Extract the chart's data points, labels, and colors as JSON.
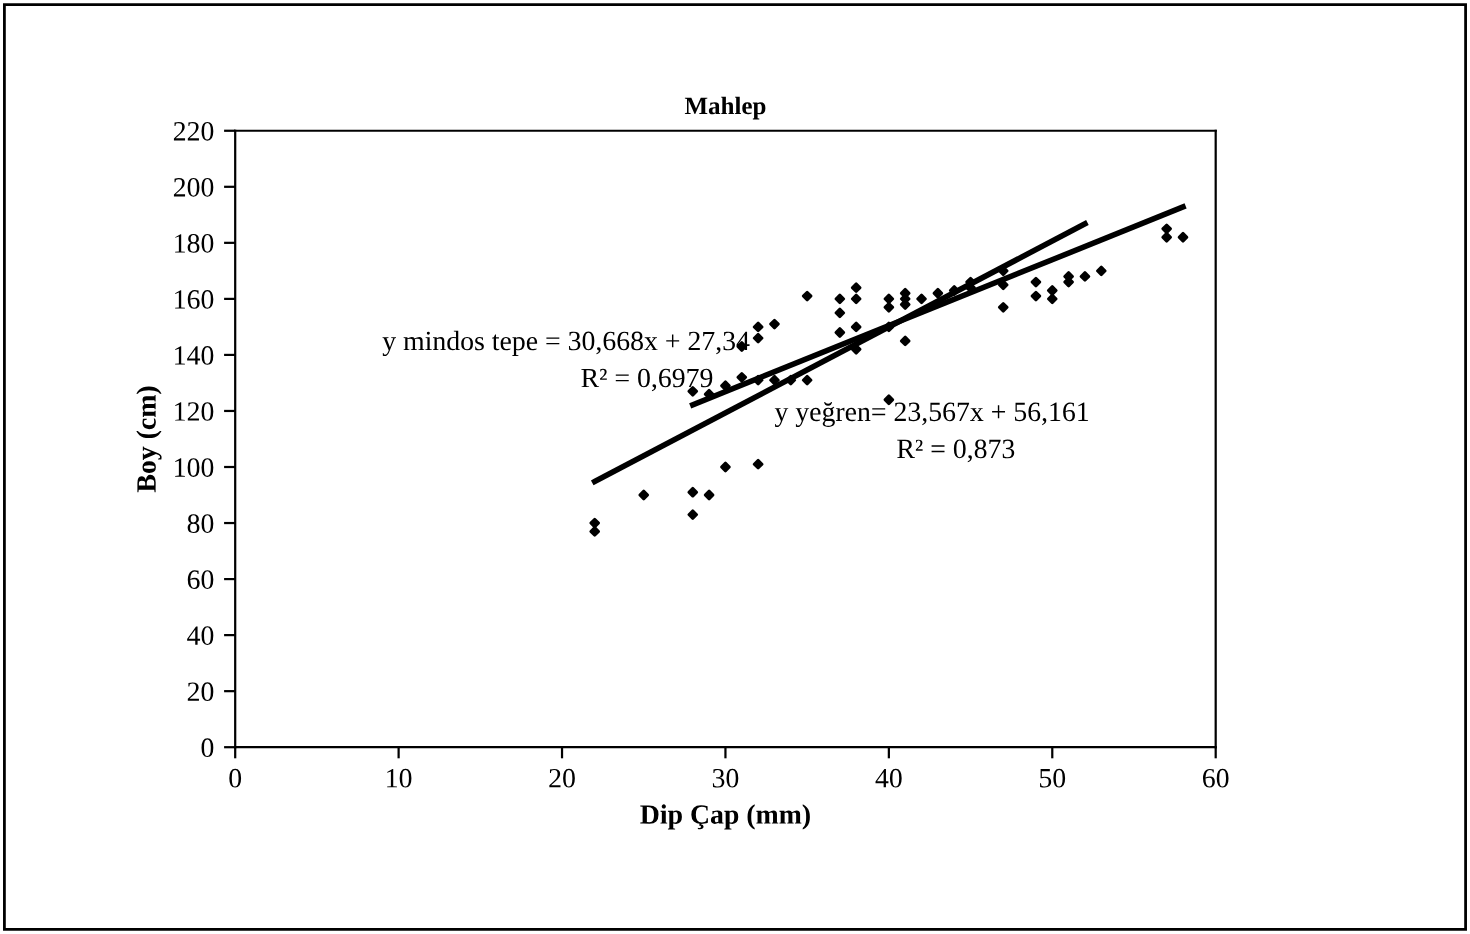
{
  "chart_data": {
    "type": "scatter",
    "title": "Mahlep",
    "xlabel": "Dip Çap (mm)",
    "ylabel": "Boy (cm)",
    "xlim": [
      0,
      60
    ],
    "xticks": [
      0,
      10,
      20,
      30,
      40,
      50,
      60
    ],
    "ylim": [
      0,
      220
    ],
    "yticks": [
      0,
      20,
      40,
      60,
      80,
      100,
      120,
      140,
      160,
      180,
      200,
      220
    ],
    "grid": false,
    "legend": false,
    "series": [
      {
        "color": "#000000",
        "marker": "diamond",
        "x": [
          22,
          22,
          25,
          28,
          28,
          29,
          30,
          32,
          28,
          29,
          30,
          31,
          32,
          33,
          31,
          32,
          32,
          33,
          34,
          35,
          35,
          37,
          37,
          37,
          38,
          38,
          38,
          38,
          40,
          40,
          40,
          40,
          41,
          41,
          41,
          41,
          42,
          43,
          44,
          45,
          45,
          47,
          47,
          47,
          49,
          49,
          50,
          50,
          51,
          51,
          52,
          53,
          57,
          57,
          58
        ],
        "values": [
          80,
          77,
          90,
          91,
          83,
          90,
          100,
          101,
          127,
          126,
          129,
          132,
          131,
          131,
          143,
          146,
          150,
          151,
          131,
          131,
          161,
          160,
          155,
          148,
          164,
          160,
          150,
          142,
          160,
          157,
          150,
          124,
          162,
          160,
          158,
          145,
          160,
          162,
          163,
          166,
          164,
          170,
          165,
          157,
          166,
          161,
          163,
          160,
          168,
          166,
          168,
          170,
          185,
          182,
          182
        ]
      },
      {
        "type": "line",
        "color": "#000000",
        "marker": "none",
        "line_style": "solid",
        "x": [
          22,
          52
        ],
        "values": [
          94.8,
          186.8
        ]
      },
      {
        "type": "line",
        "color": "#000000",
        "marker": "none",
        "line_style": "solid",
        "x": [
          28,
          58
        ],
        "values": [
          122.2,
          192.8
        ]
      }
    ],
    "annotations": [
      "y mindos tepe = 30,668x + 27,34",
      "R² = 0,6979",
      "y yeğren= 23,567x + 56,161",
      "R² = 0,873"
    ]
  }
}
